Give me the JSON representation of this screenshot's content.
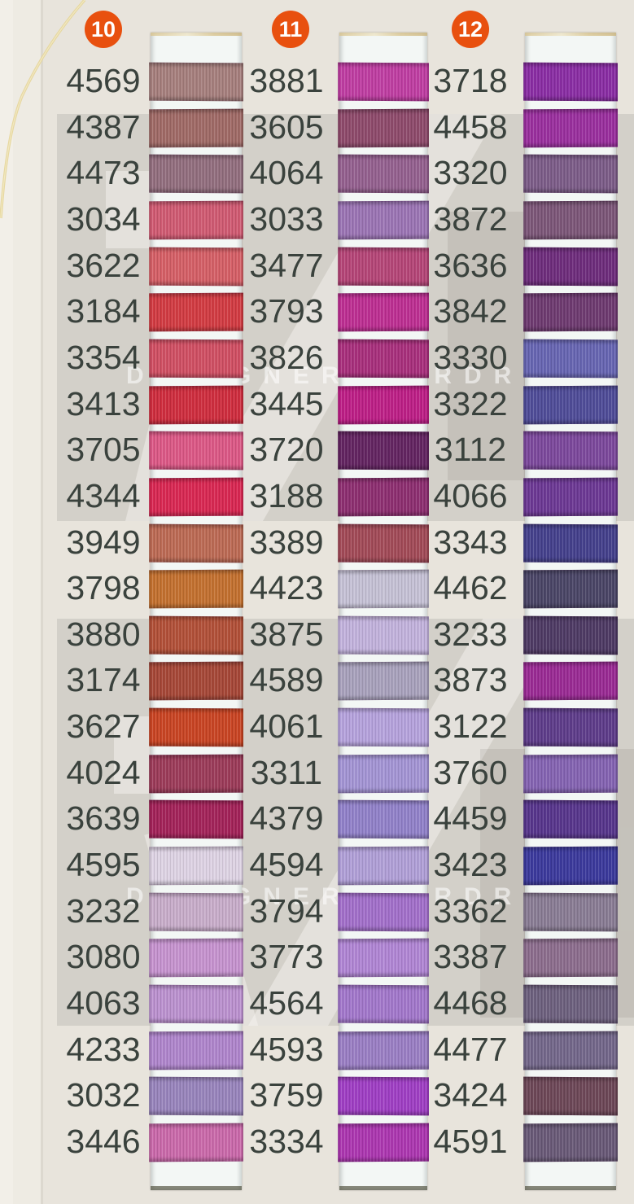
{
  "page": {
    "brand_watermark": "DESIGNER WARDROBE",
    "background_color": "#e8e4dc",
    "watermark_panel_color": "#d3d0c9",
    "number_text_color": "#3a423d",
    "badge_color": "#e8500f",
    "card_color": "#f3f7f5",
    "loose_thread_color": "#e6d69c"
  },
  "columns": [
    {
      "badge": "10",
      "rows": [
        {
          "code": "4569",
          "color": "#a67f7d"
        },
        {
          "code": "4387",
          "color": "#a06a66"
        },
        {
          "code": "4473",
          "color": "#926e7e"
        },
        {
          "code": "3034",
          "color": "#d05a72"
        },
        {
          "code": "3622",
          "color": "#d55f66"
        },
        {
          "code": "3184",
          "color": "#d23b42"
        },
        {
          "code": "3354",
          "color": "#d04f63"
        },
        {
          "code": "3413",
          "color": "#cf2d3e"
        },
        {
          "code": "3705",
          "color": "#dc5886"
        },
        {
          "code": "4344",
          "color": "#d92752"
        },
        {
          "code": "3949",
          "color": "#bc6a54"
        },
        {
          "code": "3798",
          "color": "#c3702f"
        },
        {
          "code": "3880",
          "color": "#b25038"
        },
        {
          "code": "3174",
          "color": "#a64737"
        },
        {
          "code": "3627",
          "color": "#c94423"
        },
        {
          "code": "4024",
          "color": "#9c3b59"
        },
        {
          "code": "3639",
          "color": "#a32259"
        },
        {
          "code": "4595",
          "color": "#ded3e4"
        },
        {
          "code": "3232",
          "color": "#c8adca"
        },
        {
          "code": "3080",
          "color": "#c693cf"
        },
        {
          "code": "4063",
          "color": "#bb91cf"
        },
        {
          "code": "4233",
          "color": "#af85cc"
        },
        {
          "code": "3032",
          "color": "#9884bc"
        },
        {
          "code": "3446",
          "color": "#ca69aa"
        }
      ]
    },
    {
      "badge": "11",
      "rows": [
        {
          "code": "3881",
          "color": "#bf3da2"
        },
        {
          "code": "3605",
          "color": "#8e4a6b"
        },
        {
          "code": "4064",
          "color": "#94608f"
        },
        {
          "code": "3033",
          "color": "#9b74b4"
        },
        {
          "code": "3477",
          "color": "#b54577"
        },
        {
          "code": "3793",
          "color": "#bd2e92"
        },
        {
          "code": "3826",
          "color": "#a82f7c"
        },
        {
          "code": "3445",
          "color": "#bd1e86"
        },
        {
          "code": "3720",
          "color": "#632461"
        },
        {
          "code": "3188",
          "color": "#8d2e70"
        },
        {
          "code": "3389",
          "color": "#a24a57"
        },
        {
          "code": "4423",
          "color": "#c5c1d5"
        },
        {
          "code": "3875",
          "color": "#c2b2dc"
        },
        {
          "code": "4589",
          "color": "#a8a1bc"
        },
        {
          "code": "4061",
          "color": "#b5a2dc"
        },
        {
          "code": "3311",
          "color": "#a394d4"
        },
        {
          "code": "4379",
          "color": "#9181c9"
        },
        {
          "code": "4594",
          "color": "#b09fd7"
        },
        {
          "code": "3794",
          "color": "#a26fca"
        },
        {
          "code": "3773",
          "color": "#b085d4"
        },
        {
          "code": "4564",
          "color": "#a277cb"
        },
        {
          "code": "4593",
          "color": "#9a7ec4"
        },
        {
          "code": "3759",
          "color": "#9f3ec4"
        },
        {
          "code": "3334",
          "color": "#ac36b0"
        }
      ]
    },
    {
      "badge": "12",
      "rows": [
        {
          "code": "3718",
          "color": "#8a2da4"
        },
        {
          "code": "4458",
          "color": "#9a2f9e"
        },
        {
          "code": "3320",
          "color": "#7c5c88"
        },
        {
          "code": "3872",
          "color": "#7c5678"
        },
        {
          "code": "3636",
          "color": "#6e2c7c"
        },
        {
          "code": "3842",
          "color": "#6e3a70"
        },
        {
          "code": "3330",
          "color": "#6765b2"
        },
        {
          "code": "3322",
          "color": "#4f4c98"
        },
        {
          "code": "3112",
          "color": "#7c489c"
        },
        {
          "code": "4066",
          "color": "#6c3894"
        },
        {
          "code": "3343",
          "color": "#44408c"
        },
        {
          "code": "4462",
          "color": "#4a4566"
        },
        {
          "code": "3233",
          "color": "#4e3a64"
        },
        {
          "code": "3873",
          "color": "#9a2a94"
        },
        {
          "code": "3122",
          "color": "#5e3c8a"
        },
        {
          "code": "3760",
          "color": "#8463b2"
        },
        {
          "code": "4459",
          "color": "#57358c"
        },
        {
          "code": "3423",
          "color": "#3b399c"
        },
        {
          "code": "3362",
          "color": "#897c94"
        },
        {
          "code": "3387",
          "color": "#8c6d8d"
        },
        {
          "code": "4468",
          "color": "#6d607e"
        },
        {
          "code": "4477",
          "color": "#73678a"
        },
        {
          "code": "3424",
          "color": "#6d4757"
        },
        {
          "code": "4591",
          "color": "#695977"
        }
      ]
    }
  ]
}
